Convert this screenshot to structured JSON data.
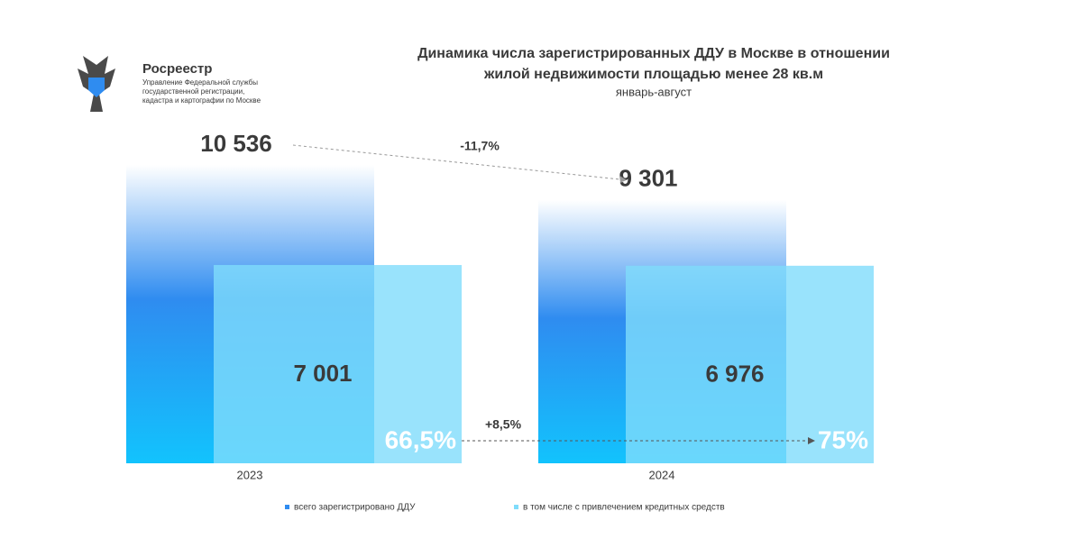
{
  "logo": {
    "name": "Росреестр",
    "lines": [
      "Управление Федеральной службы",
      "государственной регистрации,",
      "кадастра и картографии по Москве"
    ]
  },
  "chart_data": {
    "type": "bar",
    "title": [
      "Динамика числа зарегистрированных ДДУ в Москве в отношении",
      "жилой недвижимости площадью менее 28 кв.м"
    ],
    "subtitle": "январь-август",
    "categories": [
      "2023",
      "2024"
    ],
    "series": [
      {
        "name": "всего зарегистрировано ДДУ",
        "color": "#2f8cf0",
        "values": [
          10536,
          9301
        ],
        "value_labels": [
          "10 536",
          "9 301"
        ]
      },
      {
        "name": "в том числе с привлечением кредитных средств",
        "color": "#7fdcfb",
        "values": [
          7001,
          6976
        ],
        "value_labels": [
          "7 001",
          "6 976"
        ]
      }
    ],
    "annotations": {
      "shares": [
        "66,5%",
        "75%"
      ],
      "total_change": "-11,7%",
      "share_change": "+8,5%"
    },
    "legend": "bottom"
  }
}
